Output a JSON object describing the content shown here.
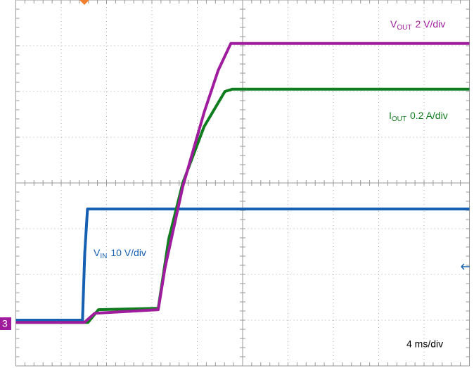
{
  "chart_data": {
    "type": "line",
    "xlim": [
      0,
      10
    ],
    "ylim": [
      0,
      8
    ],
    "xticks": [
      0,
      1,
      2,
      3,
      4,
      5,
      6,
      7,
      8,
      9,
      10
    ],
    "yticks": [
      0,
      1,
      2,
      3,
      4,
      5,
      6,
      7,
      8
    ],
    "grid": true,
    "time_scale": "4 ms/div",
    "channel_marker": "3",
    "series": [
      {
        "name": "V",
        "name_sub": "OUT",
        "scale": "2 V/div",
        "color": "#a01c9e",
        "x": [
          0,
          1.51,
          1.74,
          3.14,
          3.29,
          3.68,
          4.15,
          4.46,
          4.74,
          10
        ],
        "values": [
          0.95,
          0.95,
          1.15,
          1.23,
          2.15,
          3.92,
          5.54,
          6.46,
          7.05,
          7.05
        ]
      },
      {
        "name": "I",
        "name_sub": "OUT",
        "scale": "0.2 A/div",
        "color": "#0f7d1e",
        "x": [
          0,
          1.59,
          1.82,
          3.14,
          3.37,
          3.68,
          4.15,
          4.61,
          4.77,
          10
        ],
        "values": [
          0.95,
          0.95,
          1.23,
          1.26,
          2.77,
          4.0,
          5.23,
          6.0,
          6.05,
          6.05
        ]
      },
      {
        "name": "V",
        "name_sub": "IN",
        "scale": "10 V/div",
        "color": "#1560b0",
        "x": [
          0,
          1.47,
          1.52,
          1.58,
          10
        ],
        "values": [
          1.0,
          1.0,
          2.46,
          3.43,
          3.43
        ]
      }
    ]
  }
}
